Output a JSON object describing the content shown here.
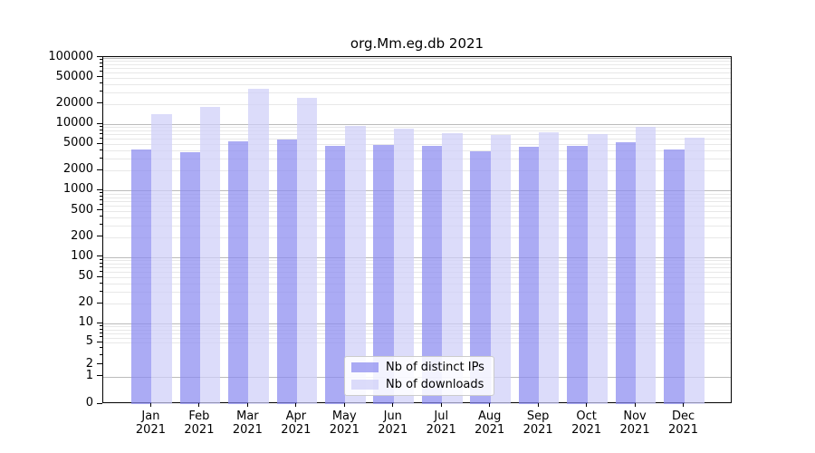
{
  "title": "org.Mm.eg.db 2021",
  "chart_data": {
    "type": "bar",
    "title": "org.Mm.eg.db 2021",
    "year": "2021",
    "months": [
      "Jan",
      "Feb",
      "Mar",
      "Apr",
      "May",
      "Jun",
      "Jul",
      "Aug",
      "Sep",
      "Oct",
      "Nov",
      "Dec"
    ],
    "categories": [
      "Jan 2021",
      "Feb 2021",
      "Mar 2021",
      "Apr 2021",
      "May 2021",
      "Jun 2021",
      "Jul 2021",
      "Aug 2021",
      "Sep 2021",
      "Oct 2021",
      "Nov 2021",
      "Dec 2021"
    ],
    "series": [
      {
        "name": "Nb of distinct IPs",
        "color": "rgba(138,138,240,0.72)",
        "values": [
          4200,
          3800,
          5500,
          5800,
          4700,
          4900,
          4700,
          3900,
          4500,
          4700,
          5300,
          4200
        ]
      },
      {
        "name": "Nb of downloads",
        "color": "rgba(206,206,248,0.72)",
        "values": [
          14000,
          18000,
          34000,
          25000,
          9500,
          8500,
          7300,
          6800,
          7500,
          7100,
          9200,
          6200
        ]
      }
    ],
    "y_ticks": [
      0,
      1,
      2,
      5,
      10,
      20,
      50,
      100,
      200,
      500,
      1000,
      2000,
      5000,
      10000,
      20000,
      50000,
      100000
    ],
    "y_scale": "log-with-zero (symlog-like)",
    "ylim": [
      0,
      100000
    ],
    "grid": "both (major decade lines darker, minor lines lighter)",
    "legend_position": "lower center"
  },
  "colors": {
    "major_grid": "#bbbbbb",
    "minor_grid": "#e8e8e8",
    "axis": "#000000",
    "legend_border": "#cccccc"
  }
}
